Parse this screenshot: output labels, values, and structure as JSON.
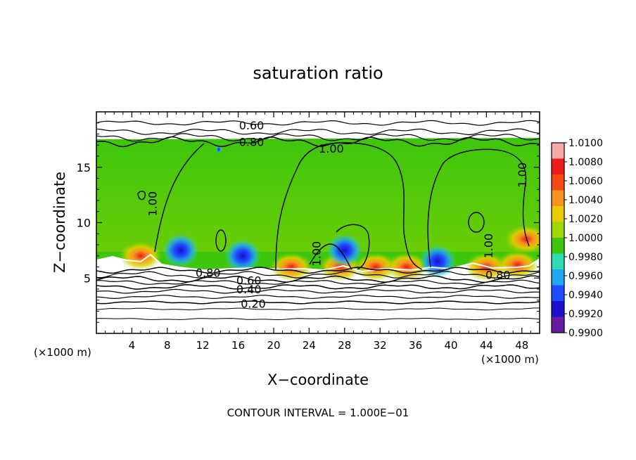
{
  "chart_data": {
    "type": "heatmap",
    "title": "saturation ratio",
    "xlabel": "X−coordinate",
    "ylabel": "Z−coordinate",
    "x_unit_left": "(×1000 m)",
    "x_unit_right": "(×1000 m)",
    "xlim": [
      0,
      50
    ],
    "ylim": [
      0,
      20
    ],
    "x_ticks": [
      4,
      8,
      12,
      16,
      20,
      24,
      28,
      32,
      36,
      40,
      44,
      48
    ],
    "y_ticks": [
      5,
      10,
      15
    ],
    "footer": "CONTOUR INTERVAL = 1.000E−01",
    "colorbar": {
      "levels": [
        "1.0100",
        "1.0080",
        "1.0060",
        "1.0040",
        "1.0020",
        "1.0000",
        "0.9980",
        "0.9960",
        "0.9940",
        "0.9920",
        "0.9900"
      ],
      "colors": [
        "#f7a8a8",
        "#ee1c1c",
        "#f44a10",
        "#f7931e",
        "#e6cc00",
        "#9ed600",
        "#3ec60c",
        "#2fdcb4",
        "#20a8f0",
        "#1e4cff",
        "#1a10c8",
        "#6a1aa0"
      ]
    },
    "contour_labels": [
      {
        "text": "0.60",
        "x": 17.5,
        "z": 18.8,
        "rot": 0
      },
      {
        "text": "0.80",
        "x": 17.5,
        "z": 17.3,
        "rot": 0
      },
      {
        "text": "1.00",
        "x": 26.5,
        "z": 16.7,
        "rot": 0
      },
      {
        "text": "1.00",
        "x": 48.0,
        "z": 14.3,
        "rot": -90
      },
      {
        "text": "1.00",
        "x": 6.3,
        "z": 11.7,
        "rot": -90
      },
      {
        "text": "1.00",
        "x": 24.8,
        "z": 7.2,
        "rot": -90
      },
      {
        "text": "1.00",
        "x": 44.2,
        "z": 7.9,
        "rot": -90
      },
      {
        "text": "0.80",
        "x": 12.6,
        "z": 5.5,
        "rot": 0
      },
      {
        "text": "0.60",
        "x": 17.2,
        "z": 4.8,
        "rot": 0
      },
      {
        "text": "0.40",
        "x": 17.2,
        "z": 4.0,
        "rot": 0
      },
      {
        "text": "0.20",
        "x": 17.7,
        "z": 2.7,
        "rot": 0
      },
      {
        "text": "0.80",
        "x": 45.3,
        "z": 5.3,
        "rot": 0
      }
    ],
    "background_value": "1.0000",
    "warm_spots": [
      {
        "x": 22.0,
        "z": 6.0,
        "value": "1.0080"
      },
      {
        "x": 27.5,
        "z": 6.0,
        "value": "1.0060"
      },
      {
        "x": 31.5,
        "z": 6.0,
        "value": "1.0060"
      },
      {
        "x": 35.0,
        "z": 6.0,
        "value": "1.0040"
      },
      {
        "x": 44.0,
        "z": 6.0,
        "value": "1.0060"
      },
      {
        "x": 47.5,
        "z": 6.2,
        "value": "1.0060"
      },
      {
        "x": 48.5,
        "z": 8.5,
        "value": "1.0040"
      },
      {
        "x": 5.0,
        "z": 7.0,
        "value": "1.0040"
      }
    ],
    "cool_spots": [
      {
        "x": 9.5,
        "z": 7.5,
        "value": "0.9940"
      },
      {
        "x": 16.5,
        "z": 7.0,
        "value": "0.9920"
      },
      {
        "x": 28.0,
        "z": 7.5,
        "value": "0.9960"
      },
      {
        "x": 38.5,
        "z": 6.5,
        "value": "0.9940"
      },
      {
        "x": 13.8,
        "z": 16.6,
        "value": "0.9940"
      }
    ]
  }
}
